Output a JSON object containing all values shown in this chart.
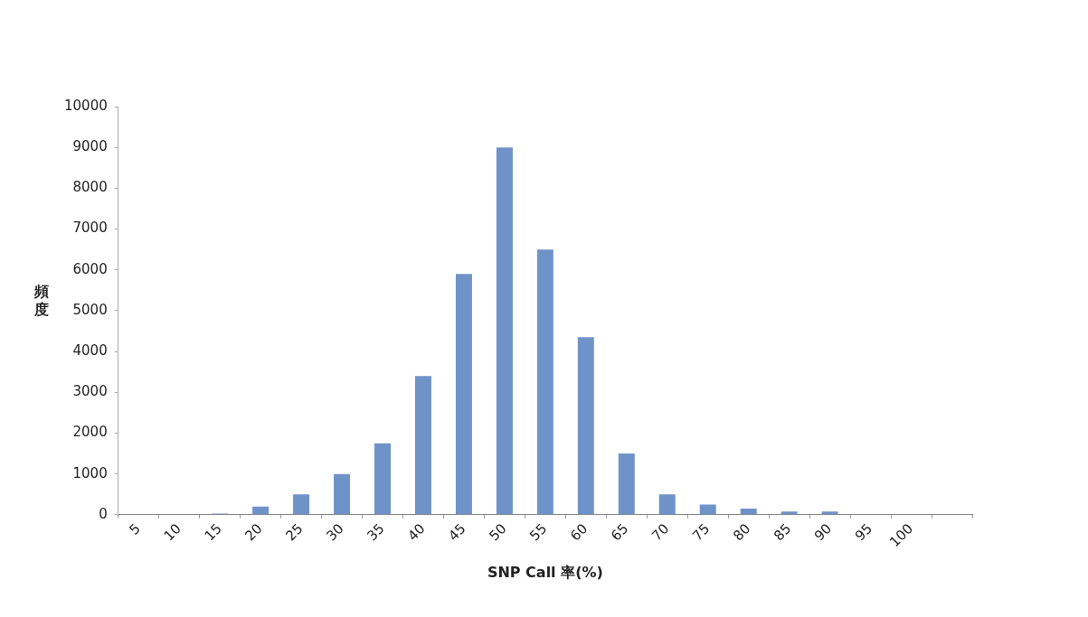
{
  "chart_data": {
    "type": "bar",
    "xlabel": "SNP Call 率(%)",
    "ylabel": "頻度",
    "categories": [
      "5",
      "10",
      "15",
      "20",
      "25",
      "30",
      "35",
      "40",
      "45",
      "50",
      "55",
      "60",
      "65",
      "70",
      "75",
      "80",
      "85",
      "90",
      "95",
      "100",
      null
    ],
    "values": [
      0,
      0,
      30,
      200,
      500,
      1000,
      1750,
      3400,
      5900,
      9000,
      6500,
      4350,
      1500,
      500,
      250,
      150,
      80,
      80,
      0,
      0,
      0
    ],
    "color": "#6f93c9",
    "ylim": [
      0,
      10000
    ],
    "yticks": [
      0,
      1000,
      2000,
      3000,
      4000,
      5000,
      6000,
      7000,
      8000,
      9000,
      10000
    ],
    "grid": false,
    "legend": false
  }
}
